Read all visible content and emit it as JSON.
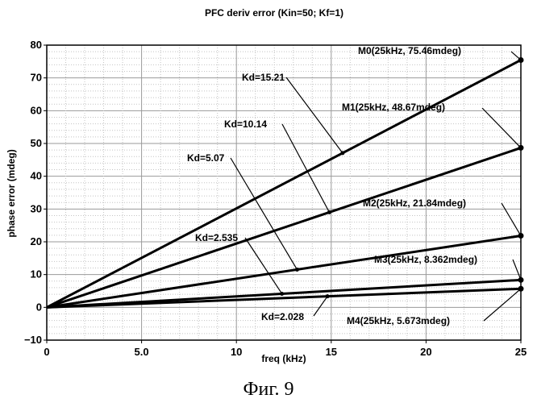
{
  "caption": "Фиг. 9",
  "chart_data": {
    "type": "line",
    "title": "PFC deriv error (Kin=50; Kf=1)",
    "xlabel": "freq (kHz)",
    "ylabel": "phase error (mdeg)",
    "xlim": [
      0,
      25
    ],
    "ylim": [
      -10,
      80
    ],
    "x_ticks": [
      0,
      5,
      10,
      15,
      20,
      25
    ],
    "x_tick_labels": [
      "0",
      "5.0",
      "10",
      "15",
      "20",
      "25"
    ],
    "y_ticks": [
      -10,
      0,
      10,
      20,
      30,
      40,
      50,
      60,
      70,
      80
    ],
    "y_tick_labels": [
      "−10",
      "0",
      "10",
      "20",
      "30",
      "40",
      "50",
      "60",
      "70",
      "80"
    ],
    "grid": true,
    "series": [
      {
        "label": "Kd=15.21",
        "x": [
          0,
          25
        ],
        "y": [
          0,
          75.46
        ],
        "marker": "M0(25kHz, 75.46mdeg)"
      },
      {
        "label": "Kd=10.14",
        "x": [
          0,
          25
        ],
        "y": [
          0,
          48.67
        ],
        "marker": "M1(25kHz, 48.67mdeg)"
      },
      {
        "label": "Kd=5.07",
        "x": [
          0,
          25
        ],
        "y": [
          0,
          21.84
        ],
        "marker": "M2(25kHz, 21.84mdeg)"
      },
      {
        "label": "Kd=2.535",
        "x": [
          0,
          25
        ],
        "y": [
          0,
          8.362
        ],
        "marker": "M3(25kHz, 8.362mdeg)"
      },
      {
        "label": "Kd=2.028",
        "x": [
          0,
          25
        ],
        "y": [
          0,
          5.673
        ],
        "marker": "M4(25kHz, 5.673mdeg)"
      }
    ]
  }
}
